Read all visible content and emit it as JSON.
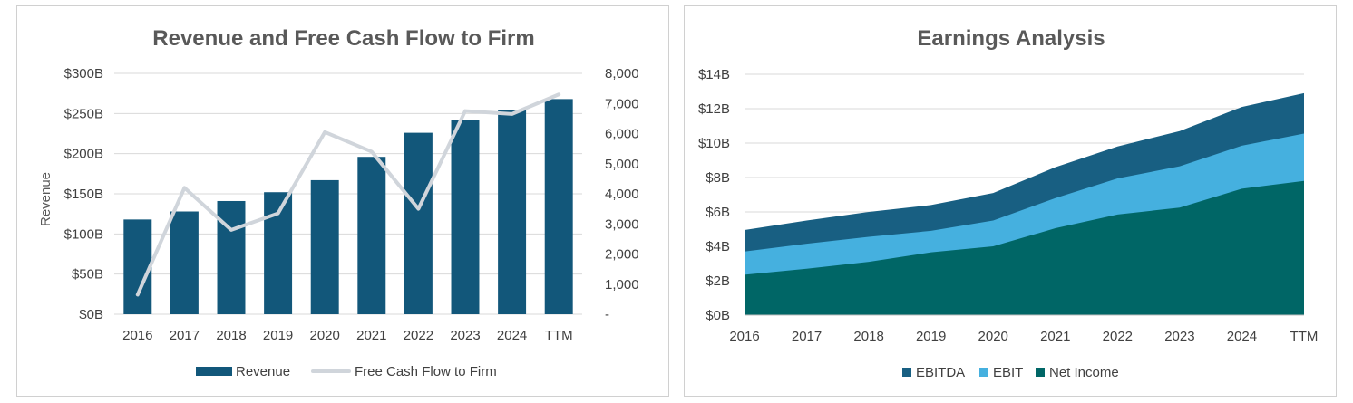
{
  "chart_data": [
    {
      "type": "bar+line",
      "title": "Revenue and Free Cash Flow to Firm",
      "categories": [
        "2016",
        "2017",
        "2018",
        "2019",
        "2020",
        "2021",
        "2022",
        "2023",
        "2024",
        "TTM"
      ],
      "series": [
        {
          "name": "Revenue",
          "kind": "bar",
          "axis": "left",
          "color": "#12577A",
          "values": [
            118,
            128,
            141,
            152,
            167,
            196,
            226,
            242,
            254,
            268
          ]
        },
        {
          "name": "Free Cash Flow to Firm",
          "kind": "line",
          "axis": "right",
          "color": "#D0D5DB",
          "values": [
            650,
            4200,
            2800,
            3350,
            6050,
            5400,
            3500,
            6750,
            6650,
            7300
          ]
        }
      ],
      "ylabel": "Revenue",
      "ylim": [
        0,
        300
      ],
      "y_ticks": [
        "$0B",
        "$50B",
        "$100B",
        "$150B",
        "$200B",
        "$250B",
        "$300B"
      ],
      "y2lim": [
        0,
        8000
      ],
      "y2_ticks": [
        "-",
        "1,000",
        "2,000",
        "3,000",
        "4,000",
        "5,000",
        "6,000",
        "7,000",
        "8,000"
      ],
      "grid": true,
      "legend": "bottom"
    },
    {
      "type": "area",
      "title": "Earnings Analysis",
      "categories": [
        "2016",
        "2017",
        "2018",
        "2019",
        "2020",
        "2021",
        "2022",
        "2023",
        "2024",
        "TTM"
      ],
      "series": [
        {
          "name": "EBITDA",
          "color": "#185F82",
          "values": [
            4.95,
            5.5,
            6.0,
            6.4,
            7.1,
            8.6,
            9.8,
            10.7,
            12.1,
            12.9
          ]
        },
        {
          "name": "EBIT",
          "color": "#45B0DF",
          "values": [
            3.7,
            4.15,
            4.55,
            4.9,
            5.5,
            6.8,
            7.95,
            8.65,
            9.85,
            10.55
          ]
        },
        {
          "name": "Net Income",
          "color": "#006666",
          "values": [
            2.35,
            2.7,
            3.1,
            3.65,
            4.0,
            5.05,
            5.85,
            6.25,
            7.35,
            7.8
          ]
        }
      ],
      "ylim": [
        0,
        14
      ],
      "y_ticks": [
        "$0B",
        "$2B",
        "$4B",
        "$6B",
        "$8B",
        "$10B",
        "$12B",
        "$14B"
      ],
      "grid": true,
      "legend": "bottom"
    }
  ]
}
